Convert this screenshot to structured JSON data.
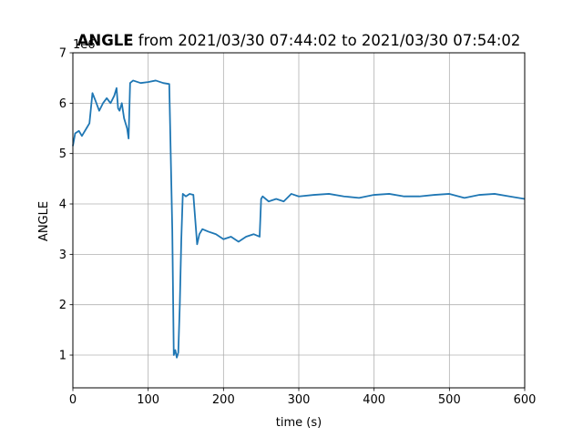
{
  "chart_data": {
    "type": "line",
    "title_bold": "ANGLE",
    "title_rest": " from 2021/03/30 07:44:02 to 2021/03/30 07:54:02",
    "xlabel": "time (s)",
    "ylabel": "ANGLE",
    "offset_label": "1e6",
    "xlim": [
      0,
      600
    ],
    "ylim": [
      0.35,
      7.0
    ],
    "x_ticks": [
      0,
      100,
      200,
      300,
      400,
      500,
      600
    ],
    "y_ticks": [
      1,
      2,
      3,
      4,
      5,
      6,
      7
    ],
    "grid": true,
    "line_color": "#1f77b4",
    "series": [
      {
        "x": [
          0,
          3,
          8,
          12,
          18,
          22,
          24,
          26,
          30,
          35,
          40,
          45,
          50,
          55,
          58,
          60,
          62,
          65,
          68,
          70,
          72,
          74,
          76,
          80,
          90,
          100,
          110,
          120,
          128,
          132,
          134,
          136,
          138,
          140,
          142,
          144,
          146,
          150,
          155,
          160,
          165,
          168,
          172,
          180,
          190,
          200,
          210,
          220,
          230,
          240,
          248,
          250,
          252,
          260,
          270,
          280,
          290,
          300,
          320,
          340,
          360,
          380,
          400,
          420,
          440,
          460,
          480,
          500,
          520,
          540,
          560,
          580,
          600
        ],
        "y": [
          5.15,
          5.4,
          5.45,
          5.35,
          5.5,
          5.6,
          5.9,
          6.2,
          6.05,
          5.85,
          6.0,
          6.1,
          6.0,
          6.15,
          6.3,
          5.9,
          5.85,
          6.0,
          5.7,
          5.6,
          5.5,
          5.3,
          6.4,
          6.45,
          6.4,
          6.42,
          6.45,
          6.4,
          6.38,
          3.5,
          1.0,
          1.1,
          0.95,
          1.05,
          2.0,
          3.3,
          4.2,
          4.15,
          4.2,
          4.18,
          3.2,
          3.4,
          3.5,
          3.45,
          3.4,
          3.3,
          3.35,
          3.25,
          3.35,
          3.4,
          3.35,
          4.1,
          4.15,
          4.05,
          4.1,
          4.05,
          4.2,
          4.15,
          4.18,
          4.2,
          4.15,
          4.12,
          4.18,
          4.2,
          4.15,
          4.15,
          4.18,
          4.2,
          4.12,
          4.18,
          4.2,
          4.15,
          4.1
        ]
      }
    ]
  }
}
